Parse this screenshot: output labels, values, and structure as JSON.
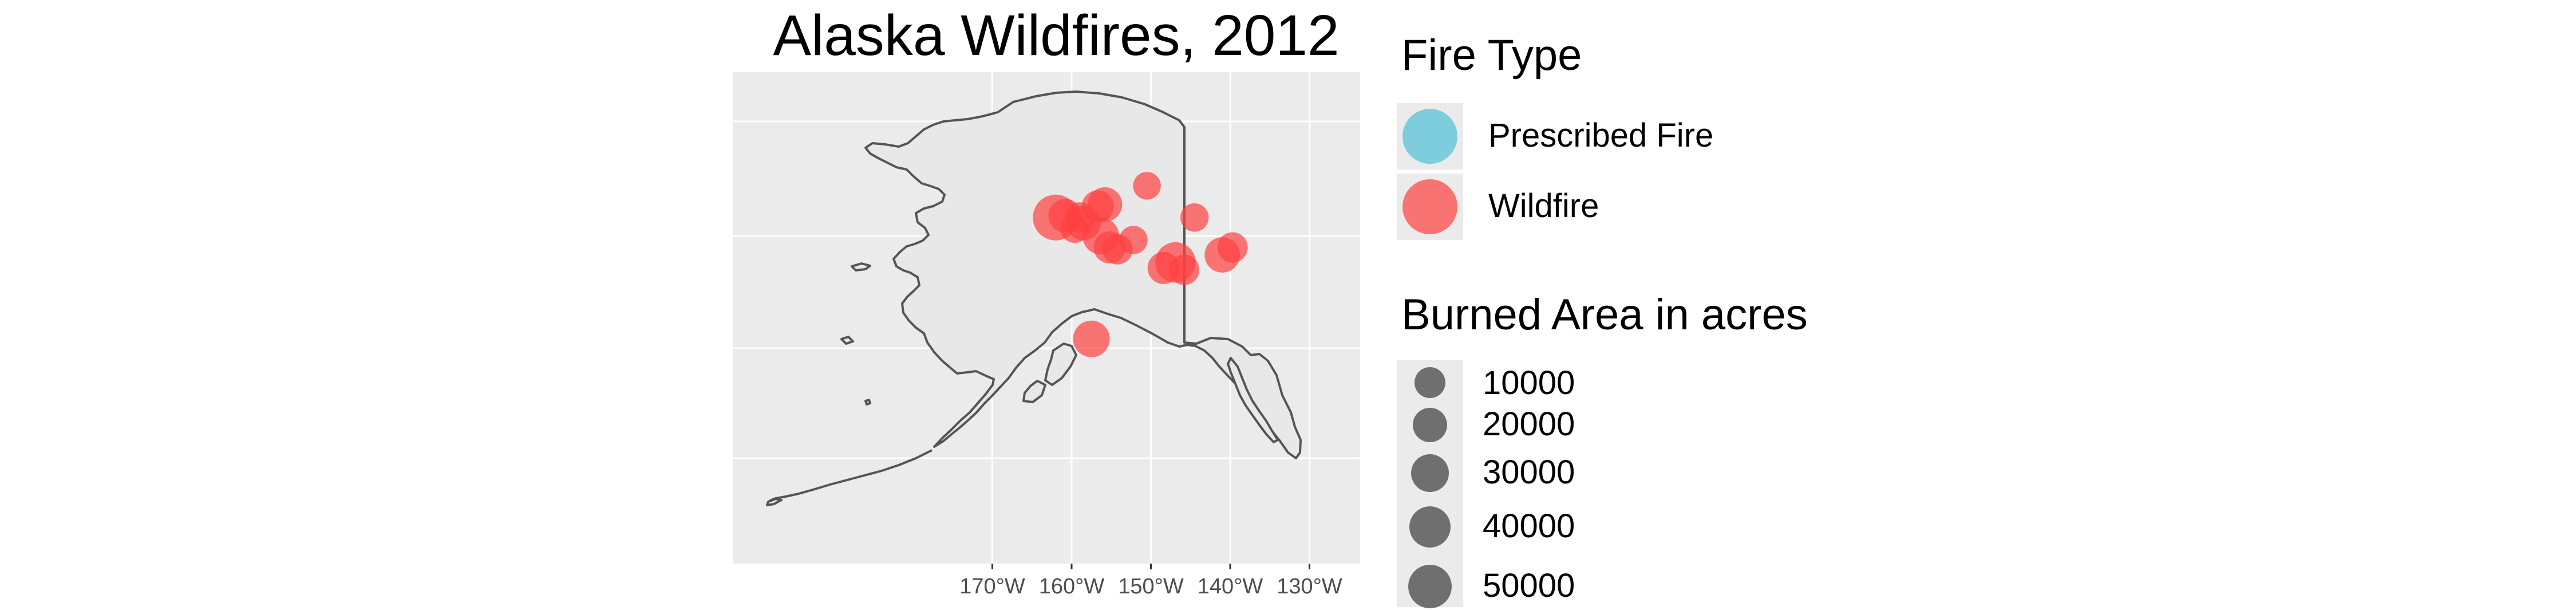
{
  "title": "Alaska Wildfires, 2012",
  "map": {
    "region": "Alaska",
    "lon_range": [
      -180,
      -124
    ],
    "lat_range": [
      51,
      72
    ],
    "x_ticks": [
      "170°W",
      "160°W",
      "150°W",
      "140°W",
      "130°W"
    ],
    "x_tick_values": [
      -170,
      -160,
      -150,
      -140,
      -130
    ],
    "panel_background": "#ebebeb",
    "gridline_color": "#ffffff",
    "outline_color": "#555555",
    "land_fill": "#e8e8e8"
  },
  "legend_fire_type": {
    "title": "Fire Type",
    "items": [
      {
        "label": "Prescribed Fire",
        "color": "#4fc1d6"
      },
      {
        "label": "Wildfire",
        "color": "#ff4040"
      }
    ]
  },
  "legend_area": {
    "title": "Burned Area in acres",
    "color": "#595959",
    "items": [
      {
        "label": "10000",
        "value": 10000
      },
      {
        "label": "20000",
        "value": 20000
      },
      {
        "label": "30000",
        "value": 30000
      },
      {
        "label": "40000",
        "value": 40000
      },
      {
        "label": "50000",
        "value": 50000
      }
    ]
  },
  "fires": [
    {
      "lon": -162.0,
      "lat": 66.6,
      "acres": 52000,
      "type": "Wildfire"
    },
    {
      "lon": -160.8,
      "lat": 66.7,
      "acres": 18000,
      "type": "Wildfire"
    },
    {
      "lon": -159.0,
      "lat": 66.6,
      "acres": 12000,
      "type": "Wildfire"
    },
    {
      "lon": -159.6,
      "lat": 66.0,
      "acres": 9000,
      "type": "Wildfire"
    },
    {
      "lon": -158.5,
      "lat": 66.3,
      "acres": 20000,
      "type": "Wildfire"
    },
    {
      "lon": -156.7,
      "lat": 67.2,
      "acres": 15000,
      "type": "Wildfire"
    },
    {
      "lon": -155.8,
      "lat": 67.3,
      "acres": 20000,
      "type": "Wildfire"
    },
    {
      "lon": -150.5,
      "lat": 68.3,
      "acres": 8000,
      "type": "Wildfire"
    },
    {
      "lon": -156.3,
      "lat": 65.6,
      "acres": 25000,
      "type": "Wildfire"
    },
    {
      "lon": -155.2,
      "lat": 65.0,
      "acres": 15000,
      "type": "Wildfire"
    },
    {
      "lon": -154.2,
      "lat": 64.9,
      "acres": 12000,
      "type": "Wildfire"
    },
    {
      "lon": -152.2,
      "lat": 65.4,
      "acres": 9000,
      "type": "Wildfire"
    },
    {
      "lon": -148.4,
      "lat": 63.9,
      "acres": 15000,
      "type": "Wildfire"
    },
    {
      "lon": -146.9,
      "lat": 64.2,
      "acres": 35000,
      "type": "Wildfire"
    },
    {
      "lon": -145.8,
      "lat": 63.8,
      "acres": 12000,
      "type": "Wildfire"
    },
    {
      "lon": -144.5,
      "lat": 66.6,
      "acres": 9000,
      "type": "Wildfire"
    },
    {
      "lon": -141.0,
      "lat": 64.6,
      "acres": 22000,
      "type": "Wildfire"
    },
    {
      "lon": -139.7,
      "lat": 65.0,
      "acres": 12000,
      "type": "Wildfire"
    },
    {
      "lon": -157.5,
      "lat": 60.1,
      "acres": 25000,
      "type": "Wildfire"
    }
  ]
}
